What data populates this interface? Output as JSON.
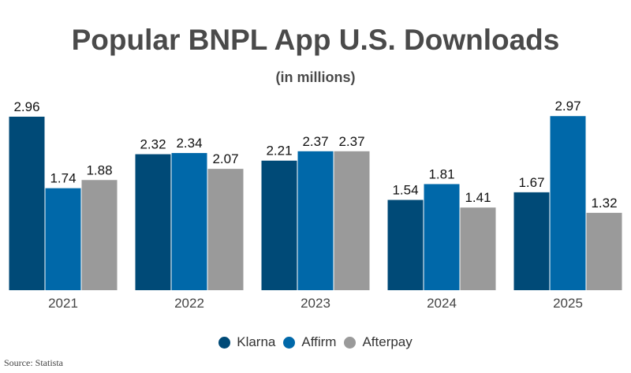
{
  "chart_data": {
    "type": "bar",
    "title": "Popular BNPL App U.S. Downloads",
    "subtitle": "(in millions)",
    "categories": [
      "2021",
      "2022",
      "2023",
      "2024",
      "2025"
    ],
    "series": [
      {
        "name": "Klarna",
        "color": "#004a77",
        "values": [
          2.96,
          2.32,
          2.21,
          1.54,
          1.67
        ]
      },
      {
        "name": "Affirm",
        "color": "#0068a9",
        "values": [
          1.74,
          2.34,
          2.37,
          1.81,
          2.97
        ]
      },
      {
        "name": "Afterpay",
        "color": "#9a9a9a",
        "values": [
          1.88,
          2.07,
          2.37,
          1.41,
          1.32
        ]
      }
    ],
    "ylim": [
      0,
      3
    ],
    "grid": false,
    "legend_position": "bottom",
    "source": "Source: Statista"
  }
}
